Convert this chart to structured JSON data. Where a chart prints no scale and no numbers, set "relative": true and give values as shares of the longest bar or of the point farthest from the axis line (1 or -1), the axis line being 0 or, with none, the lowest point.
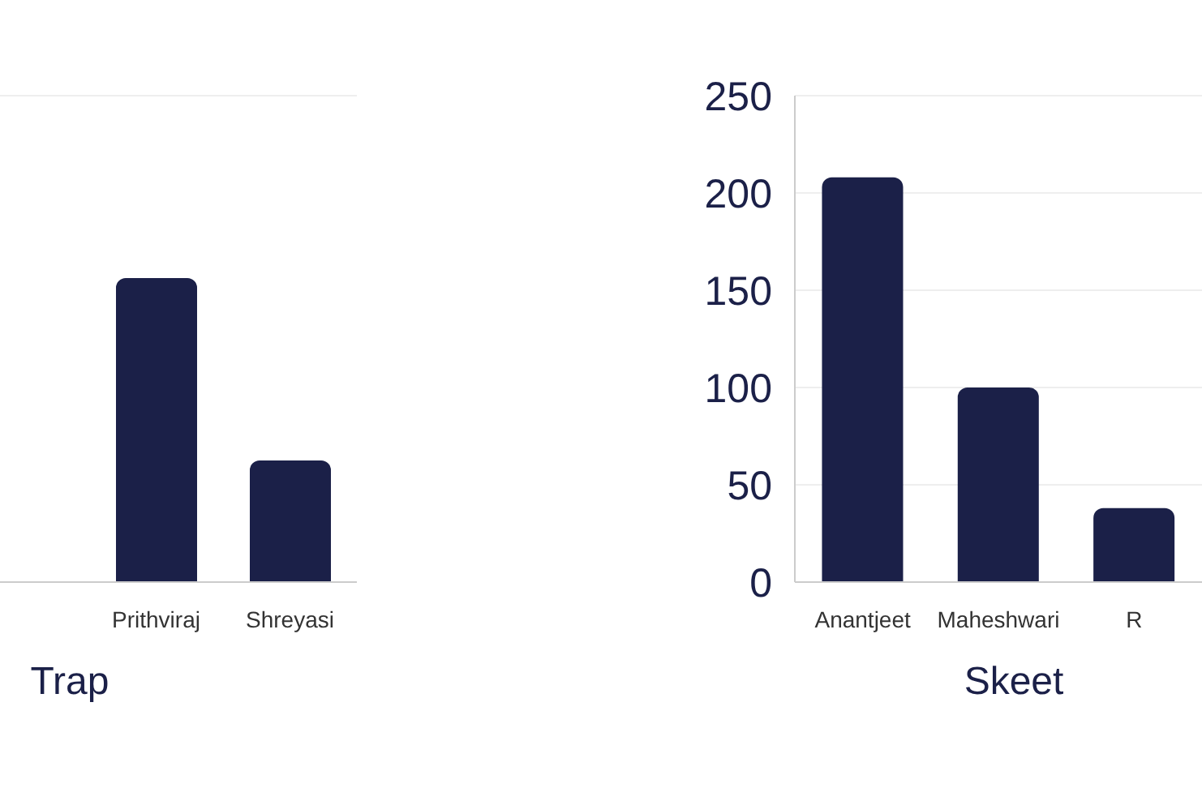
{
  "chart_data": [
    {
      "type": "bar",
      "title": "Trap",
      "categories": [
        "Prithviraj",
        "Shreyasi"
      ],
      "values": [
        1,
        0.4
      ],
      "color": "#1b2048",
      "relative": true,
      "grid": "y"
    },
    {
      "type": "bar",
      "title": "Skeet",
      "categories": [
        "Anantjeet",
        "Maheshwari",
        "R"
      ],
      "values": [
        208,
        100,
        38
      ],
      "color": "#1b2048",
      "ylim": [
        0,
        250
      ],
      "yticks": [
        0,
        50,
        100,
        150,
        200,
        250
      ],
      "grid": "y"
    }
  ]
}
